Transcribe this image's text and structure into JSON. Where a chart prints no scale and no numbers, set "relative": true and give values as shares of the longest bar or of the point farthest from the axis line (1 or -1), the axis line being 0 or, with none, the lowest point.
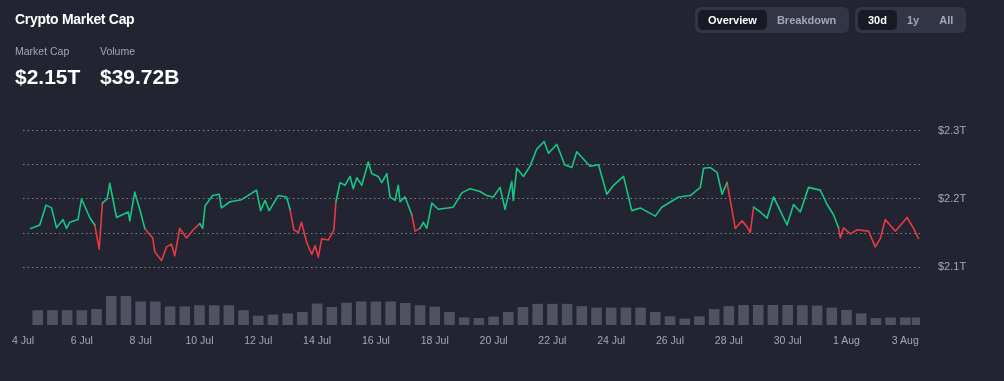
{
  "chart_data": [
    {
      "type": "line",
      "title": "Crypto Market Cap",
      "annotations": [
        "Market Cap",
        "$2.15T",
        "Volume",
        "$39.72B",
        "Overview",
        "Breakdown",
        "30d",
        "1y",
        "All"
      ],
      "x": [
        "--07-04T06:14",
        "--07-04T09:36",
        "--07-04T13:41",
        "--07-04T18:43",
        "--07-04T23:17",
        "--07-05T03:22",
        "--07-05T08:38",
        "--07-05T11:31",
        "--07-05T14:10",
        "--07-05T20:53",
        "--07-05T23:46",
        "--07-06T06:29",
        "--07-06T10:34",
        "--07-06T14:10",
        "--07-06T16:48",
        "--07-06T20:38",
        "--07-06T22:48",
        "--07-07T04:19",
        "--07-07T13:55",
        "--07-07T15:07",
        "--07-07T19:12",
        "--07-07T23:17",
        "--07-08T03:22",
        "--07-08T09:50",
        "--07-08T11:31",
        "--07-08T17:02",
        "--07-08T21:07",
        "--07-09T01:12",
        "--07-09T03:50",
        "--07-09T07:55",
        "--07-09T13:26",
        "--07-09T18:58",
        "--07-10T00:14",
        "--07-10T02:38",
        "--07-10T04:34",
        "--07-10T10:48",
        "--07-10T16:05",
        "--07-10T18:00",
        "--07-11T00:58",
        "--07-11T10:19",
        "--07-11T22:34",
        "--07-12T01:55",
        "--07-12T05:31",
        "--07-12T08:53",
        "--07-12T16:19",
        "--07-12T23:02",
        "--07-13T01:55",
        "--07-13T05:02",
        "--07-13T08:38",
        "--07-13T11:17",
        "--07-13T15:36",
        "--07-13T19:41",
        "--07-13T22:19",
        "--07-14T00:58",
        "--07-14T03:50",
        "--07-14T09:07",
        "--07-14T13:41",
        "--07-14T15:22",
        "--07-14T18:43",
        "--07-14T22:48",
        "--07-15T02:53",
        "--07-15T05:31",
        "--07-15T08:24",
        "--07-15T12:29",
        "--07-15T17:46",
        "--07-15T20:38",
        "--07-16T01:55",
        "--07-16T04:48",
        "--07-16T08:53",
        "--07-16T11:31",
        "--07-16T15:36",
        "--07-16T18:14",
        "--07-16T19:41",
        "--07-16T23:46",
        "--07-17T05:17",
        "--07-17T07:55",
        "--07-17T12:00",
        "--07-17T14:38",
        "--07-17T17:31",
        "--07-17T21:36",
        "--07-18T02:53",
        "--07-18T15:07",
        "--07-18T22:05",
        "--07-19T04:48",
        "--07-19T12:58",
        "--07-19T18:29",
        "--07-19T23:46",
        "--07-20T05:17",
        "--07-20T09:22",
        "--07-20T14:53",
        "--07-20T16:05",
        "--07-20T18:58",
        "--07-21T00:29",
        "--07-21T05:46",
        "--07-21T11:17",
        "--07-21T17:17",
        "--07-21T20:53",
        "--07-22T03:36",
        "--07-22T10:05",
        "--07-22T15:50",
        "--07-22T19:55",
        "--07-23T06:43",
        "--07-23T13:41",
        "--07-23T20:24",
        "--07-24T01:55",
        "--07-24T10:05",
        "--07-24T16:48",
        "--07-24T23:46",
        "--07-25T12:00",
        "--07-25T17:17",
        "--07-26T06:58",
        "--07-26T16:34",
        "--07-27T00:43",
        "--07-27T03:22",
        "--07-27T08:53",
        "--07-27T14:24",
        "--07-27T18:29",
        "--07-27T22:34",
        "--07-28T05:17",
        "--07-28T10:48",
        "--07-28T14:38",
        "--07-28T17:31",
        "--07-28T20:10",
        "--07-29T01:41",
        "--07-29T07:12",
        "--07-29T12:29",
        "--07-29T16:34",
        "--07-29T23:31",
        "--07-30T04:48",
        "--07-30T10:19",
        "--07-30T17:02",
        "--07-31T02:38",
        "--07-31T08:10",
        "--07-31T13:26",
        "--07-31T17:31",
        "--07-31T18:58",
        "--07-31T21:36",
        "--08-01T03:07",
        "--08-01T08:38",
        "--08-01T18:00",
        "--08-01T23:31",
        "--08-02T03:36",
        "--08-02T07:41",
        "--08-02T15:50",
        "--08-03T01:26",
        "--08-03T06:43",
        "--08-03T10:48"
      ],
      "series": [
        {
          "color": "#16c784",
          "values": [
            2.157,
            2.159,
            2.162,
            2.191,
            2.187,
            2.158,
            2.17,
            2.157,
            2.166,
            2.17,
            2.2,
            2.173,
            2.162,
            null,
            2.194,
            2.2,
            2.223,
            2.173,
            2.181,
            2.168,
            2.21,
            2.185,
            2.157,
            null,
            null,
            null,
            null,
            null,
            null,
            null,
            null,
            null,
            2.164,
            2.157,
            2.19,
            2.205,
            2.207,
            2.187,
            2.196,
            2.199,
            2.213,
            2.183,
            2.198,
            2.183,
            2.205,
            2.203,
            2.185,
            null,
            null,
            null,
            null,
            null,
            null,
            null,
            null,
            null,
            null,
            2.196,
            2.224,
            2.22,
            2.233,
            2.215,
            2.231,
            2.22,
            2.254,
            2.237,
            2.233,
            2.224,
            2.237,
            2.203,
            2.198,
            2.22,
            2.196,
            2.203,
            2.177,
            null,
            2.157,
            2.166,
            2.157,
            2.194,
            2.185,
            2.188,
            2.209,
            2.215,
            2.211,
            2.205,
            2.203,
            2.217,
            2.185,
            2.226,
            2.198,
            2.245,
            2.233,
            2.248,
            2.273,
            2.284,
            2.267,
            2.28,
            2.25,
            2.246,
            2.269,
            2.248,
            2.25,
            2.207,
            2.22,
            2.233,
            2.183,
            2.187,
            2.175,
            2.188,
            2.203,
            2.205,
            2.217,
            2.245,
            2.246,
            2.239,
            2.207,
            2.224,
            null,
            null,
            null,
            null,
            2.188,
            2.181,
            2.172,
            2.203,
            2.188,
            2.162,
            2.192,
            2.181,
            2.217,
            2.213,
            2.192,
            2.177,
            2.158,
            null,
            null,
            null,
            null,
            null,
            null,
            null,
            null,
            null,
            null,
            null,
            null
          ]
        },
        {
          "color": "#ea3943",
          "values": [
            null,
            null,
            null,
            null,
            null,
            null,
            null,
            null,
            null,
            null,
            null,
            null,
            2.162,
            2.127,
            2.194,
            null,
            null,
            null,
            null,
            null,
            null,
            null,
            2.157,
            2.143,
            2.123,
            2.11,
            2.13,
            2.134,
            2.117,
            2.157,
            2.143,
            2.155,
            2.164,
            null,
            null,
            null,
            null,
            null,
            null,
            null,
            null,
            null,
            null,
            null,
            null,
            null,
            2.185,
            2.155,
            2.151,
            2.166,
            2.136,
            2.119,
            2.132,
            2.115,
            2.142,
            2.14,
            2.155,
            2.196,
            null,
            null,
            null,
            null,
            null,
            null,
            null,
            null,
            null,
            null,
            null,
            null,
            null,
            null,
            null,
            null,
            2.177,
            2.153,
            2.157,
            null,
            null,
            null,
            null,
            null,
            null,
            null,
            null,
            null,
            null,
            null,
            null,
            null,
            null,
            null,
            null,
            null,
            null,
            null,
            null,
            null,
            null,
            null,
            null,
            null,
            null,
            null,
            null,
            null,
            null,
            null,
            null,
            null,
            null,
            null,
            null,
            null,
            null,
            null,
            null,
            2.224,
            2.157,
            2.168,
            2.16,
            2.151,
            2.188,
            null,
            null,
            null,
            null,
            null,
            null,
            null,
            null,
            null,
            null,
            null,
            2.158,
            2.143,
            2.158,
            2.149,
            2.155,
            2.153,
            2.13,
            2.142,
            2.17,
            2.153,
            2.173,
            2.157,
            2.142
          ]
        }
      ],
      "xlim": [
        "--07-04",
        "--08-03T12:00"
      ],
      "ylim": [
        2.1,
        2.3
      ],
      "yticks": [
        {
          "value": 2.1,
          "label": "$2.1T"
        },
        {
          "value": 2.15,
          "label": null
        },
        {
          "value": 2.2,
          "label": "$2.2T"
        },
        {
          "value": 2.25,
          "label": null
        },
        {
          "value": 2.3,
          "label": "$2.3T"
        }
      ],
      "grid": "y",
      "tick_labels": "y"
    },
    {
      "type": "bar",
      "relative": true,
      "color": "#4f5262",
      "x": [
        "--07-04T12:00",
        "--07-05",
        "--07-05T12:00",
        "--07-06",
        "--07-06T12:00",
        "--07-07",
        "--07-07T12:00",
        "--07-08",
        "--07-08T12:00",
        "--07-09",
        "--07-09T12:00",
        "--07-10",
        "--07-10T12:00",
        "--07-11",
        "--07-11T12:00",
        "--07-12",
        "--07-12T12:00",
        "--07-13",
        "--07-13T12:00",
        "--07-14",
        "--07-14T12:00",
        "--07-15",
        "--07-15T12:00",
        "--07-16",
        "--07-16T12:00",
        "--07-17",
        "--07-17T12:00",
        "--07-18",
        "--07-18T12:00",
        "--07-19",
        "--07-19T12:00",
        "--07-20",
        "--07-20T12:00",
        "--07-21",
        "--07-21T12:00",
        "--07-22",
        "--07-22T12:00",
        "--07-23",
        "--07-23T12:00",
        "--07-24",
        "--07-24T12:00",
        "--07-25",
        "--07-25T12:00",
        "--07-26",
        "--07-26T12:00",
        "--07-27",
        "--07-27T12:00",
        "--07-28",
        "--07-28T12:00",
        "--07-29",
        "--07-29T12:00",
        "--07-30",
        "--07-30T12:00",
        "--07-31",
        "--07-31T12:00",
        "--08-01",
        "--08-01T12:00",
        "--08-02",
        "--08-02T12:00",
        "--08-03",
        "--08-03T09:36"
      ],
      "values": [
        0.51,
        0.51,
        0.51,
        0.51,
        0.55,
        1,
        1,
        0.81,
        0.81,
        0.64,
        0.64,
        0.68,
        0.68,
        0.68,
        0.51,
        0.32,
        0.36,
        0.4,
        0.45,
        0.74,
        0.62,
        0.77,
        0.81,
        0.81,
        0.81,
        0.76,
        0.68,
        0.63,
        0.45,
        0.26,
        0.24,
        0.29,
        0.45,
        0.62,
        0.73,
        0.73,
        0.73,
        0.65,
        0.6,
        0.6,
        0.6,
        0.6,
        0.45,
        0.3,
        0.22,
        0.3,
        0.55,
        0.65,
        0.69,
        0.69,
        0.69,
        0.69,
        0.68,
        0.67,
        0.6,
        0.52,
        0.4,
        0.24,
        0.26,
        0.26,
        0.26
      ],
      "xlim": [
        "--07-04",
        "--08-03T12:00"
      ],
      "xticks": [
        {
          "value": "--07-04",
          "label": "4 Jul"
        },
        {
          "value": "--07-06",
          "label": "6 Jul"
        },
        {
          "value": "--07-08",
          "label": "8 Jul"
        },
        {
          "value": "--07-10",
          "label": "10 Jul"
        },
        {
          "value": "--07-12",
          "label": "12 Jul"
        },
        {
          "value": "--07-14",
          "label": "14 Jul"
        },
        {
          "value": "--07-16",
          "label": "16 Jul"
        },
        {
          "value": "--07-18",
          "label": "18 Jul"
        },
        {
          "value": "--07-20",
          "label": "20 Jul"
        },
        {
          "value": "--07-22",
          "label": "22 Jul"
        },
        {
          "value": "--07-24",
          "label": "24 Jul"
        },
        {
          "value": "--07-26",
          "label": "26 Jul"
        },
        {
          "value": "--07-28",
          "label": "28 Jul"
        },
        {
          "value": "--07-30",
          "label": "30 Jul"
        },
        {
          "value": "--08-01",
          "label": "1 Aug"
        },
        {
          "value": "--08-03",
          "label": "3 Aug"
        }
      ],
      "tick_labels": "x"
    }
  ]
}
